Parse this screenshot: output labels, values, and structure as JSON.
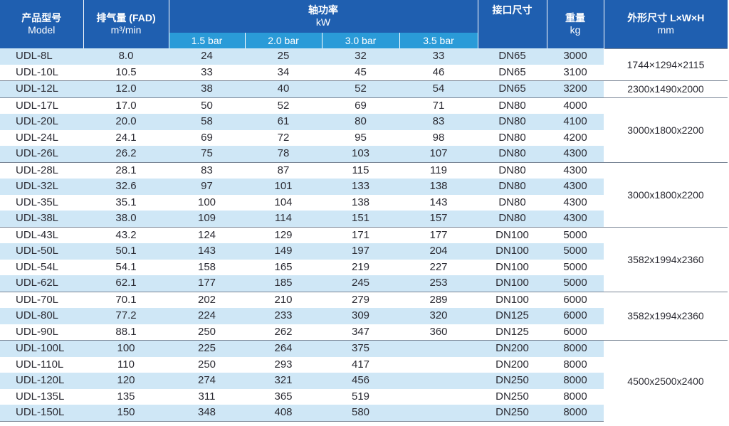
{
  "headers": {
    "model_cn": "产品型号",
    "model_en": "Model",
    "fad_cn": "排气量 (FAD)",
    "fad_unit": "m³/min",
    "power_cn": "轴功率",
    "power_unit": "kW",
    "pressures": [
      "1.5 bar",
      "2.0 bar",
      "3.0 bar",
      "3.5 bar"
    ],
    "port_cn": "接口尺寸",
    "weight_cn": "重量",
    "weight_unit": "kg",
    "dims_cn": "外形尺寸 L×W×H",
    "dims_unit": "mm"
  },
  "rows": [
    {
      "model": "UDL-8L",
      "fad": "8.0",
      "p15": "24",
      "p20": "25",
      "p30": "32",
      "p35": "33",
      "port": "DN65",
      "weight": "3000"
    },
    {
      "model": "UDL-10L",
      "fad": "10.5",
      "p15": "33",
      "p20": "34",
      "p30": "45",
      "p35": "46",
      "port": "DN65",
      "weight": "3100"
    },
    {
      "model": "UDL-12L",
      "fad": "12.0",
      "p15": "38",
      "p20": "40",
      "p30": "52",
      "p35": "54",
      "port": "DN65",
      "weight": "3200"
    },
    {
      "model": "UDL-17L",
      "fad": "17.0",
      "p15": "50",
      "p20": "52",
      "p30": "69",
      "p35": "71",
      "port": "DN80",
      "weight": "4000"
    },
    {
      "model": "UDL-20L",
      "fad": "20.0",
      "p15": "58",
      "p20": "61",
      "p30": "80",
      "p35": "83",
      "port": "DN80",
      "weight": "4100"
    },
    {
      "model": "UDL-24L",
      "fad": "24.1",
      "p15": "69",
      "p20": "72",
      "p30": "95",
      "p35": "98",
      "port": "DN80",
      "weight": "4200"
    },
    {
      "model": "UDL-26L",
      "fad": "26.2",
      "p15": "75",
      "p20": "78",
      "p30": "103",
      "p35": "107",
      "port": "DN80",
      "weight": "4300"
    },
    {
      "model": "UDL-28L",
      "fad": "28.1",
      "p15": "83",
      "p20": "87",
      "p30": "115",
      "p35": "119",
      "port": "DN80",
      "weight": "4300"
    },
    {
      "model": "UDL-32L",
      "fad": "32.6",
      "p15": "97",
      "p20": "101",
      "p30": "133",
      "p35": "138",
      "port": "DN80",
      "weight": "4300"
    },
    {
      "model": "UDL-35L",
      "fad": "35.1",
      "p15": "100",
      "p20": "104",
      "p30": "138",
      "p35": "143",
      "port": "DN80",
      "weight": "4300"
    },
    {
      "model": "UDL-38L",
      "fad": "38.0",
      "p15": "109",
      "p20": "114",
      "p30": "151",
      "p35": "157",
      "port": "DN80",
      "weight": "4300"
    },
    {
      "model": "UDL-43L",
      "fad": "43.2",
      "p15": "124",
      "p20": "129",
      "p30": "171",
      "p35": "177",
      "port": "DN100",
      "weight": "5000"
    },
    {
      "model": "UDL-50L",
      "fad": "50.1",
      "p15": "143",
      "p20": "149",
      "p30": "197",
      "p35": "204",
      "port": "DN100",
      "weight": "5000"
    },
    {
      "model": "UDL-54L",
      "fad": "54.1",
      "p15": "158",
      "p20": "165",
      "p30": "219",
      "p35": "227",
      "port": "DN100",
      "weight": "5000"
    },
    {
      "model": "UDL-62L",
      "fad": "62.1",
      "p15": "177",
      "p20": "185",
      "p30": "245",
      "p35": "253",
      "port": "DN100",
      "weight": "5000"
    },
    {
      "model": "UDL-70L",
      "fad": "70.1",
      "p15": "202",
      "p20": "210",
      "p30": "279",
      "p35": "289",
      "port": "DN100",
      "weight": "6000"
    },
    {
      "model": "UDL-80L",
      "fad": "77.2",
      "p15": "224",
      "p20": "233",
      "p30": "309",
      "p35": "320",
      "port": "DN125",
      "weight": "6000"
    },
    {
      "model": "UDL-90L",
      "fad": "88.1",
      "p15": "250",
      "p20": "262",
      "p30": "347",
      "p35": "360",
      "port": "DN125",
      "weight": "6000"
    },
    {
      "model": "UDL-100L",
      "fad": "100",
      "p15": "225",
      "p20": "264",
      "p30": "375",
      "p35": "",
      "port": "DN200",
      "weight": "8000"
    },
    {
      "model": "UDL-110L",
      "fad": "110",
      "p15": "250",
      "p20": "293",
      "p30": "417",
      "p35": "",
      "port": "DN200",
      "weight": "8000"
    },
    {
      "model": "UDL-120L",
      "fad": "120",
      "p15": "274",
      "p20": "321",
      "p30": "456",
      "p35": "",
      "port": "DN250",
      "weight": "8000"
    },
    {
      "model": "UDL-135L",
      "fad": "135",
      "p15": "311",
      "p20": "365",
      "p30": "519",
      "p35": "",
      "port": "DN250",
      "weight": "8000"
    },
    {
      "model": "UDL-150L",
      "fad": "150",
      "p15": "348",
      "p20": "408",
      "p30": "580",
      "p35": "",
      "port": "DN250",
      "weight": "8000"
    }
  ],
  "dimension_groups": [
    {
      "rows": 2,
      "value": "1744×1294×2115"
    },
    {
      "rows": 1,
      "value": "2300x1490x2000"
    },
    {
      "rows": 4,
      "value": "3000x1800x2200"
    },
    {
      "rows": 4,
      "value": "3000x1800x2200"
    },
    {
      "rows": 4,
      "value": "3582x1994x2360"
    },
    {
      "rows": 3,
      "value": "3582x1994x2360"
    },
    {
      "rows": 5,
      "value": "4500x2500x2400"
    }
  ],
  "colors": {
    "header_dark": "#1f5fb0",
    "header_sub": "#2a9bd8",
    "row_stripe": "#cfe7f6",
    "text": "#2b2b33"
  }
}
